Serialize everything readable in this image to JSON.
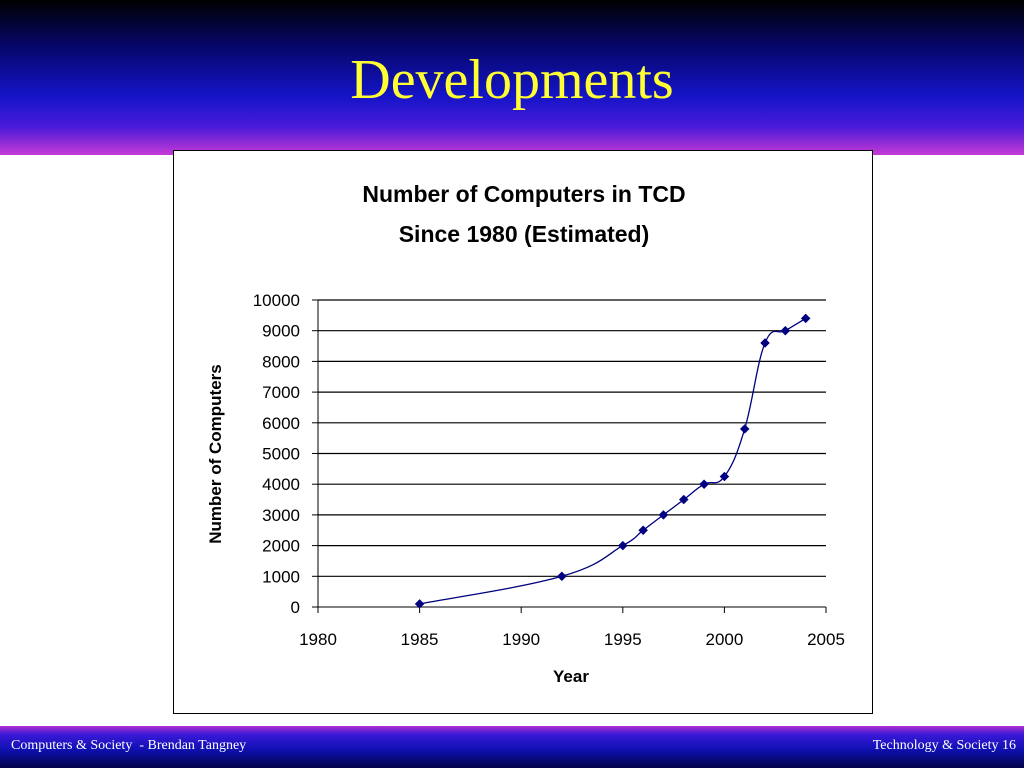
{
  "slide": {
    "title": "Developments",
    "footer_left": "Computers & Society  - Brendan Tangney",
    "footer_right": "Technology & Society 16"
  },
  "chart_data": {
    "type": "line",
    "title_lines": [
      "Number of Computers in TCD",
      "Since 1980 (Estimated)"
    ],
    "xlabel": "Year",
    "ylabel": "Number of Computers",
    "xlim": [
      1980,
      2005
    ],
    "ylim": [
      0,
      10000
    ],
    "x_ticks": [
      1980,
      1985,
      1990,
      1995,
      2000,
      2005
    ],
    "y_ticks": [
      0,
      1000,
      2000,
      3000,
      4000,
      5000,
      6000,
      7000,
      8000,
      9000,
      10000
    ],
    "grid": "horizontal",
    "marker": "diamond",
    "smoothed": true,
    "line_color": "#000080",
    "x": [
      1985,
      1992,
      1995,
      1996,
      1997,
      1998,
      1999,
      2000,
      2001,
      2002,
      2003,
      2004
    ],
    "y": [
      100,
      1000,
      2000,
      2500,
      3000,
      3500,
      4000,
      4250,
      5800,
      8600,
      9000,
      9400
    ]
  }
}
